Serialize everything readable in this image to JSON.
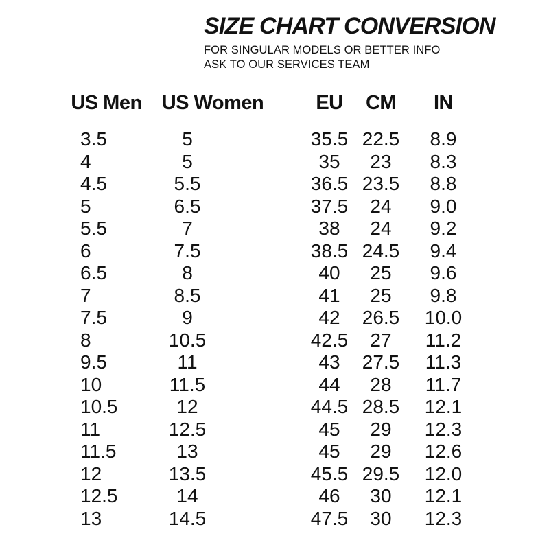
{
  "header": {
    "title": "SIZE CHART CONVERSION",
    "subtitle_line1": "FOR SINGULAR MODELS OR BETTER INFO",
    "subtitle_line2": "ASK TO OUR SERVICES TEAM"
  },
  "chart_data": {
    "type": "table",
    "title": "SIZE CHART CONVERSION",
    "columns": [
      "US Men",
      "US Women",
      "EU",
      "CM",
      "IN"
    ],
    "rows": [
      [
        "3.5",
        "5",
        "35.5",
        "22.5",
        "8.9"
      ],
      [
        "4",
        "5",
        "35",
        "23",
        "8.3"
      ],
      [
        "4.5",
        "5.5",
        "36.5",
        "23.5",
        "8.8"
      ],
      [
        "5",
        "6.5",
        "37.5",
        "24",
        "9.0"
      ],
      [
        "5.5",
        "7",
        "38",
        "24",
        "9.2"
      ],
      [
        "6",
        "7.5",
        "38.5",
        "24.5",
        "9.4"
      ],
      [
        "6.5",
        "8",
        "40",
        "25",
        "9.6"
      ],
      [
        "7",
        "8.5",
        "41",
        "25",
        "9.8"
      ],
      [
        "7.5",
        "9",
        "42",
        "26.5",
        "10.0"
      ],
      [
        "8",
        "10.5",
        "42.5",
        "27",
        "11.2"
      ],
      [
        "9.5",
        "11",
        "43",
        "27.5",
        "11.3"
      ],
      [
        "10",
        "11.5",
        "44",
        "28",
        "11.7"
      ],
      [
        "10.5",
        "12",
        "44.5",
        "28.5",
        "12.1"
      ],
      [
        "11",
        "12.5",
        "45",
        "29",
        "12.3"
      ],
      [
        "11.5",
        "13",
        "45",
        "29",
        "12.6"
      ],
      [
        "12",
        "13.5",
        "45.5",
        "29.5",
        "12.0"
      ],
      [
        "12.5",
        "14",
        "46",
        "30",
        "12.1"
      ],
      [
        "13",
        "14.5",
        "47.5",
        "30",
        "12.3"
      ]
    ]
  },
  "colors": {
    "text": "#121212",
    "background": "#ffffff"
  }
}
